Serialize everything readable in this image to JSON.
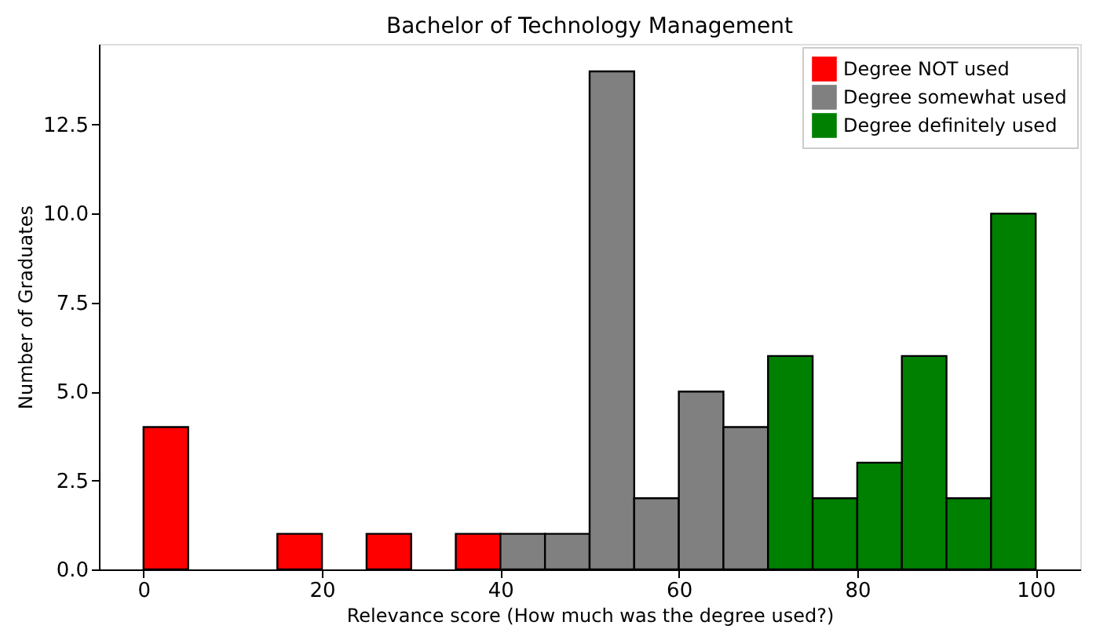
{
  "chart_data": {
    "type": "histogram",
    "title": "Bachelor of Technology Management",
    "xlabel": "Relevance score (How much was the degree used?)",
    "ylabel": "Number of Graduates",
    "bins": [
      0,
      5,
      10,
      15,
      20,
      25,
      30,
      35,
      40,
      45,
      50,
      55,
      60,
      65,
      70,
      75,
      80,
      85,
      90,
      95,
      100
    ],
    "series": [
      {
        "name": "Degree NOT used",
        "color": "#ff0000",
        "values": [
          4,
          0,
          0,
          1,
          0,
          1,
          0,
          1,
          null,
          null,
          null,
          null,
          null,
          null,
          null,
          null,
          null,
          null,
          null,
          null
        ]
      },
      {
        "name": "Degree somewhat used",
        "color": "#808080",
        "values": [
          null,
          null,
          null,
          null,
          null,
          null,
          null,
          null,
          1,
          1,
          14,
          2,
          5,
          4,
          null,
          null,
          null,
          null,
          null,
          null
        ]
      },
      {
        "name": "Degree definitely used",
        "color": "#008000",
        "values": [
          null,
          null,
          null,
          null,
          null,
          null,
          null,
          null,
          null,
          null,
          null,
          null,
          null,
          null,
          6,
          2,
          3,
          6,
          2,
          10
        ]
      }
    ],
    "xlim": [
      -5,
      105
    ],
    "xticks": [
      0,
      20,
      40,
      60,
      80,
      100
    ],
    "ylim": [
      0,
      14.77
    ],
    "yticks": [
      {
        "value": 0,
        "label": "0.0"
      },
      {
        "value": 2.5,
        "label": "2.5"
      },
      {
        "value": 5,
        "label": "5.0"
      },
      {
        "value": 7.5,
        "label": "7.5"
      },
      {
        "value": 10,
        "label": "10.0"
      },
      {
        "value": 12.5,
        "label": "12.5"
      }
    ],
    "grid": false,
    "legend": "top right"
  }
}
